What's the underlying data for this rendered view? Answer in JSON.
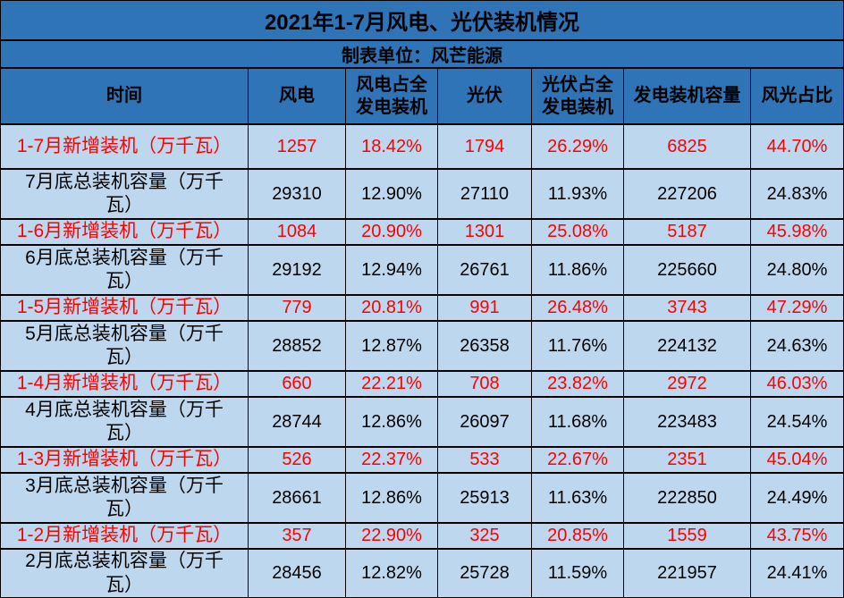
{
  "chart_data": {
    "type": "table",
    "title": "2021年1-7月风电、光伏装机情况",
    "subtitle": "制表单位：风芒能源",
    "columns": [
      "时间",
      "风电",
      "风电占全发电装机",
      "光伏",
      "光伏占全发电装机",
      "发电装机容量",
      "风光占比"
    ],
    "rows": [
      {
        "type": "new",
        "label": "1-7月新增装机（万千瓦）",
        "cells": [
          "1257",
          "18.42%",
          "1794",
          "26.29%",
          "6825",
          "44.70%"
        ]
      },
      {
        "type": "cumulative",
        "label": "7月底总装机容量（万千瓦）",
        "cells": [
          "29310",
          "12.90%",
          "27110",
          "11.93%",
          "227206",
          "24.83%"
        ]
      },
      {
        "type": "new",
        "label": "1-6月新增装机（万千瓦）",
        "cells": [
          "1084",
          "20.90%",
          "1301",
          "25.08%",
          "5187",
          "45.98%"
        ]
      },
      {
        "type": "cumulative",
        "label": "6月底总装机容量（万千瓦）",
        "cells": [
          "29192",
          "12.94%",
          "26761",
          "11.86%",
          "225660",
          "24.80%"
        ]
      },
      {
        "type": "new",
        "label": "1-5月新增装机（万千瓦）",
        "cells": [
          "779",
          "20.81%",
          "991",
          "26.48%",
          "3743",
          "47.29%"
        ]
      },
      {
        "type": "cumulative",
        "label": "5月底总装机容量（万千瓦）",
        "cells": [
          "28852",
          "12.87%",
          "26358",
          "11.76%",
          "224132",
          "24.63%"
        ]
      },
      {
        "type": "new",
        "label": "1-4月新增装机（万千瓦）",
        "cells": [
          "660",
          "22.21%",
          "708",
          "23.82%",
          "2972",
          "46.03%"
        ]
      },
      {
        "type": "cumulative",
        "label": "4月底总装机容量（万千瓦）",
        "cells": [
          "28744",
          "12.86%",
          "26097",
          "11.68%",
          "223483",
          "24.54%"
        ]
      },
      {
        "type": "new",
        "label": "1-3月新增装机（万千瓦）",
        "cells": [
          "526",
          "22.37%",
          "533",
          "22.67%",
          "2351",
          "45.04%"
        ]
      },
      {
        "type": "cumulative",
        "label": "3月底总装机容量（万千瓦）",
        "cells": [
          "28661",
          "12.86%",
          "25913",
          "11.63%",
          "222850",
          "24.49%"
        ]
      },
      {
        "type": "new",
        "label": "1-2月新增装机（万千瓦）",
        "cells": [
          "357",
          "22.90%",
          "325",
          "20.85%",
          "1559",
          "43.75%"
        ]
      },
      {
        "type": "cumulative",
        "label": "2月底总装机容量（万千瓦）",
        "cells": [
          "28456",
          "12.82%",
          "25728",
          "11.59%",
          "221957",
          "24.41%"
        ]
      }
    ]
  },
  "colors": {
    "header_bg": "#2E74B6",
    "body_bg": "#BDD7EE",
    "border": "#000000",
    "header_text": "#000000",
    "new_row_text": "#FF0000",
    "cumulative_row_text": "#000000"
  }
}
